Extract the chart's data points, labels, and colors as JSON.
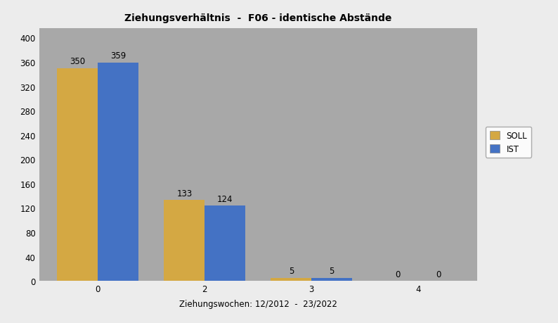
{
  "title": "Ziehungsverhältnis  -  F06 - identische Abstände",
  "xlabel": "Ziehungswochen: 12/2012  -  23/2022",
  "categories": [
    0,
    2,
    3,
    4
  ],
  "soll_values": [
    350,
    133,
    5,
    0
  ],
  "ist_values": [
    359,
    124,
    5,
    0
  ],
  "soll_color": "#D4A843",
  "ist_color": "#4472C4",
  "ylim": [
    0,
    415
  ],
  "yticks": [
    0,
    40,
    80,
    120,
    160,
    200,
    240,
    280,
    320,
    360,
    400
  ],
  "bar_width": 0.38,
  "legend_labels": [
    "SOLL",
    "IST"
  ],
  "plot_bg_color": "#A8A8A8",
  "fig_bg_color": "#ECECEC",
  "title_fontsize": 10,
  "label_fontsize": 8.5,
  "tick_fontsize": 8.5,
  "annotation_fontsize": 8.5,
  "xlim_left": -0.55,
  "xlim_right": 3.55
}
